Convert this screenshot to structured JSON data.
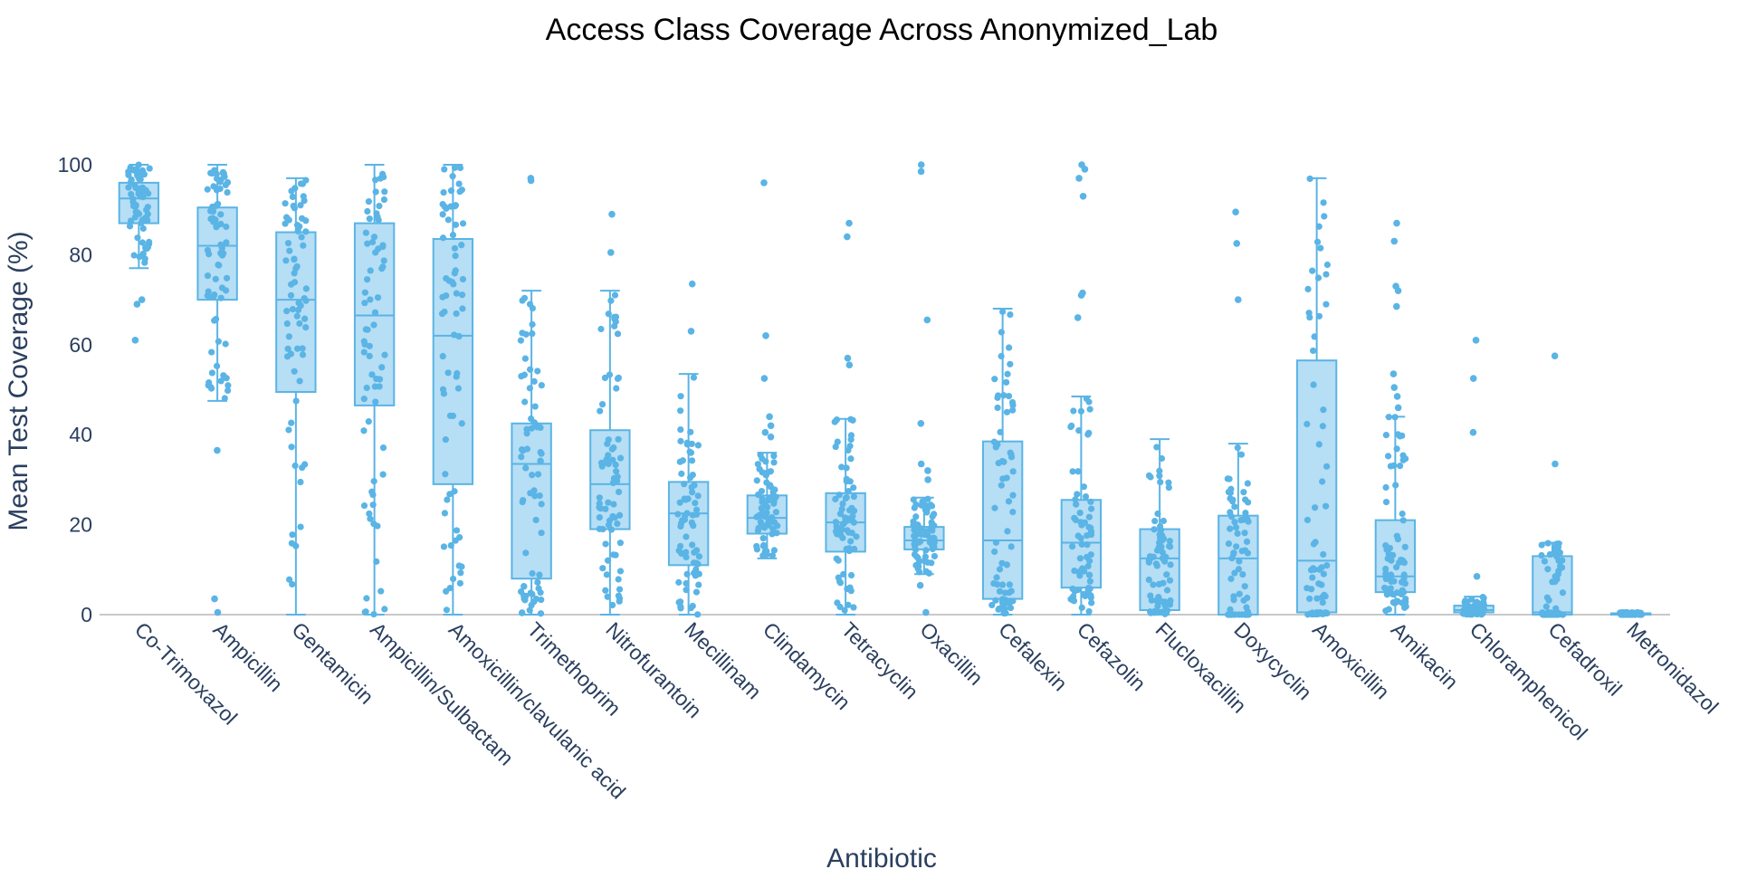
{
  "chart_data": {
    "type": "box",
    "title": "Access Class Coverage Across Anonymized_Lab",
    "xlabel": "Antibiotic",
    "ylabel": "Mean Test Coverage (%)",
    "ylim": [
      0,
      100
    ],
    "yticks": [
      0,
      20,
      40,
      60,
      80,
      100
    ],
    "grid": false,
    "legend": "none",
    "color": "#5ab4e5",
    "fill": "#a9d8f3",
    "boxes": [
      {
        "name": "Co-Trimoxazol",
        "q1": 87,
        "median": 92.5,
        "q3": 96,
        "lowerfence": 77,
        "upperfence": 100,
        "outliers": [
          70,
          69,
          61
        ]
      },
      {
        "name": "Ampicillin",
        "q1": 70,
        "median": 82,
        "q3": 90.5,
        "lowerfence": 47.5,
        "upperfence": 100,
        "outliers": [
          36.5,
          3.5,
          0.5
        ]
      },
      {
        "name": "Gentamicin",
        "q1": 49.5,
        "median": 70,
        "q3": 85,
        "lowerfence": 0,
        "upperfence": 97,
        "outliers": []
      },
      {
        "name": "Ampicillin/Sulbactam",
        "q1": 46.5,
        "median": 66.5,
        "q3": 87,
        "lowerfence": 0,
        "upperfence": 100,
        "outliers": []
      },
      {
        "name": "Amoxicillin/clavulanic acid",
        "q1": 29,
        "median": 62,
        "q3": 83.5,
        "lowerfence": 0,
        "upperfence": 100,
        "outliers": []
      },
      {
        "name": "Trimethoprim",
        "q1": 8,
        "median": 33.5,
        "q3": 42.5,
        "lowerfence": 0,
        "upperfence": 72,
        "outliers": [
          97,
          96.5
        ]
      },
      {
        "name": "Nitrofurantoin",
        "q1": 19,
        "median": 29,
        "q3": 41,
        "lowerfence": 0,
        "upperfence": 72,
        "outliers": [
          89,
          80.5
        ]
      },
      {
        "name": "Mecillinam",
        "q1": 11,
        "median": 22.5,
        "q3": 29.5,
        "lowerfence": 0,
        "upperfence": 53.5,
        "outliers": [
          73.5,
          63
        ]
      },
      {
        "name": "Clindamycin",
        "q1": 18,
        "median": 21.5,
        "q3": 26.5,
        "lowerfence": 12.5,
        "upperfence": 36,
        "outliers": [
          96,
          62,
          52.5,
          44,
          42,
          40.5,
          39.5
        ]
      },
      {
        "name": "Tetracyclin",
        "q1": 14,
        "median": 20.5,
        "q3": 27,
        "lowerfence": 0,
        "upperfence": 43.5,
        "outliers": [
          87,
          84,
          57,
          55.5
        ]
      },
      {
        "name": "Oxacillin",
        "q1": 14.5,
        "median": 16.5,
        "q3": 19.5,
        "lowerfence": 9,
        "upperfence": 26,
        "outliers": [
          100,
          98.5,
          65.5,
          42.5,
          33.5,
          32,
          30,
          6.5,
          0.5
        ]
      },
      {
        "name": "Cefalexin",
        "q1": 3.5,
        "median": 16.5,
        "q3": 38.5,
        "lowerfence": 0,
        "upperfence": 68,
        "outliers": []
      },
      {
        "name": "Cefazolin",
        "q1": 6,
        "median": 16,
        "q3": 25.5,
        "lowerfence": 0,
        "upperfence": 48.5,
        "outliers": [
          100,
          99,
          97,
          93,
          71.5,
          71,
          66
        ]
      },
      {
        "name": "Flucloxacillin",
        "q1": 1,
        "median": 12.5,
        "q3": 19,
        "lowerfence": 0,
        "upperfence": 39,
        "outliers": []
      },
      {
        "name": "Doxycyclin",
        "q1": 0,
        "median": 12.5,
        "q3": 22,
        "lowerfence": 0,
        "upperfence": 38,
        "outliers": [
          89.5,
          82.5,
          70
        ]
      },
      {
        "name": "Amoxicillin",
        "q1": 0.5,
        "median": 12,
        "q3": 56.5,
        "lowerfence": 0,
        "upperfence": 97,
        "outliers": []
      },
      {
        "name": "Amikacin",
        "q1": 5,
        "median": 8.5,
        "q3": 21,
        "lowerfence": 0,
        "upperfence": 44,
        "outliers": [
          87,
          83,
          73,
          72,
          68.5,
          53.5,
          50.5,
          48.5,
          46
        ]
      },
      {
        "name": "Chloramphenicol",
        "q1": 0.5,
        "median": 1,
        "q3": 2,
        "lowerfence": 0,
        "upperfence": 4,
        "outliers": [
          61,
          52.5,
          40.5,
          8.5
        ]
      },
      {
        "name": "Cefadroxil",
        "q1": 0,
        "median": 0.5,
        "q3": 13,
        "lowerfence": 0,
        "upperfence": 16,
        "outliers": [
          57.5,
          33.5
        ]
      },
      {
        "name": "Metronidazol",
        "q1": 0,
        "median": 0,
        "q3": 0.3,
        "lowerfence": 0,
        "upperfence": 0.5,
        "outliers": []
      }
    ]
  }
}
